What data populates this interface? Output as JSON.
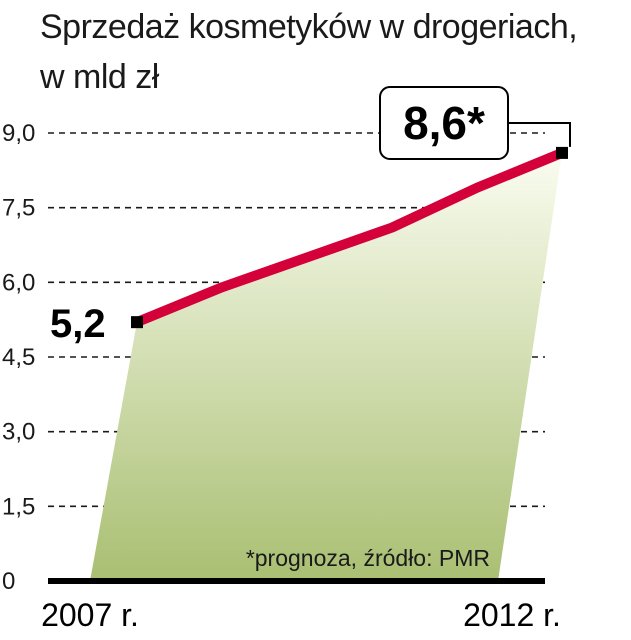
{
  "title_line1": "Sprzedaż kosmetyków w drogeriach,",
  "title_line2": "w mld zł",
  "footnote": "*prognoza, źródło: PMR",
  "colors": {
    "line": "#d4003a",
    "fill_top": "#fafcf0",
    "fill_bottom": "#a9bf72",
    "grid": "#1a1a1a",
    "axis": "#000000"
  },
  "chart_data": {
    "type": "line",
    "title": "Sprzedaż kosmetyków w drogeriach, w mld zł",
    "x": [
      "2007",
      "2008",
      "2009",
      "2010",
      "2011",
      "2012"
    ],
    "x_tick_labels": [
      "2007 r.",
      "2012 r."
    ],
    "series": [
      {
        "values": [
          5.2,
          5.9,
          6.5,
          7.1,
          7.9,
          8.6
        ]
      }
    ],
    "data_labels": [
      {
        "x": "2007",
        "text": "5,2"
      },
      {
        "x": "2012",
        "text": "8,6*"
      }
    ],
    "y_ticks": [
      0,
      1.5,
      3.0,
      4.5,
      6.0,
      7.5,
      9.0
    ],
    "y_tick_labels": [
      "0",
      "1,5",
      "3,0",
      "4,5",
      "6,0",
      "7,5",
      "9,0"
    ],
    "ylim": [
      0,
      9.0
    ],
    "grid": "dashed horizontal",
    "legend": "none"
  }
}
